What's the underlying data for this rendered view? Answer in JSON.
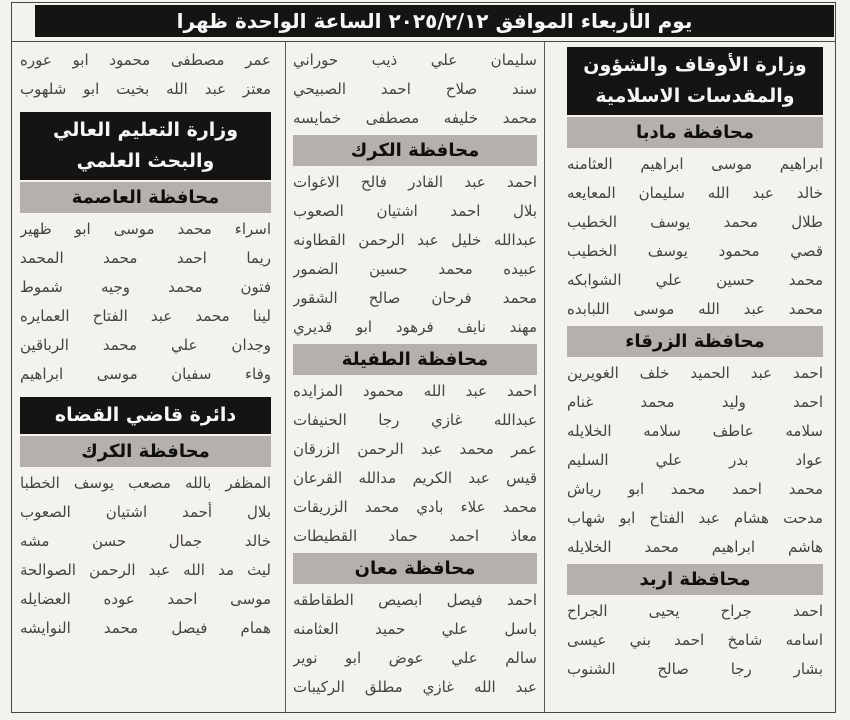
{
  "colors": {
    "page_bg": "#f4f2ef",
    "banner_black_bg": "#161412",
    "banner_black_text": "#f7f6f4",
    "banner_gray_bg": "#b3b0ad",
    "banner_gray_text": "#100f0e",
    "name_text": "#454340",
    "border": "#4a4642"
  },
  "header": {
    "title": "يوم الأربعاء الموافق ٢٠٢٥/٢/١٢ الساعة الواحدة ظهرا"
  },
  "columns": [
    {
      "id": "column-right",
      "blocks": [
        {
          "type": "ministry",
          "label": "وزارة الأوقاف والشؤون والمقدسات الاسلامية"
        },
        {
          "type": "governorate",
          "label": "محافظة مادبا"
        },
        {
          "type": "names",
          "items": [
            "ابراهيم موسى ابراهيم العثامنه",
            "خالد عبد الله سليمان المعايعه",
            "طلال محمد يوسف الخطيب",
            "قصي محمود يوسف الخطيب",
            "محمد حسين علي الشوابكه",
            "محمد عبد الله موسى اللبابده"
          ]
        },
        {
          "type": "governorate",
          "label": "محافظة الزرقاء"
        },
        {
          "type": "names",
          "items": [
            "احمد عبد الحميد خلف الغويرين",
            "احمد وليد محمد غنام",
            "سلامه عاطف سلامه الخلايله",
            "عواد بدر علي السليم",
            "محمد احمد محمد ابو رياش",
            "مدحت هشام عبد الفتاح ابو شهاب",
            "هاشم ابراهيم محمد الخلايله"
          ]
        },
        {
          "type": "governorate",
          "label": "محافظة اربد"
        },
        {
          "type": "names",
          "items": [
            "احمد جراح يحيى الجراح",
            "اسامه شامخ احمد بني عيسى",
            "بشار رجا صالح الشنوب"
          ]
        }
      ]
    },
    {
      "id": "column-middle",
      "blocks": [
        {
          "type": "names",
          "items": [
            "سليمان علي ذيب حوراني",
            "سند صلاح احمد الصبيحي",
            "محمد خليفه مصطفى خمايسه"
          ]
        },
        {
          "type": "governorate",
          "label": "محافظة الكرك"
        },
        {
          "type": "names",
          "items": [
            "احمد عبد القادر فالح الاغوات",
            "بلال احمد اشتيان الصعوب",
            "عبدالله خليل عبد الرحمن القطاونه",
            "عبيده محمد حسين الضمور",
            "محمد فرحان صالح الشقور",
            "مهند نايف فرهود ابو قديري"
          ]
        },
        {
          "type": "governorate",
          "label": "محافظة الطفيلة"
        },
        {
          "type": "names",
          "items": [
            "احمد عبد الله محمود المزايده",
            "عبدالله غازي رجا الحنيفات",
            "عمر محمد عبد الرحمن الزرقان",
            "قيس عبد الكريم مدالله القرعان",
            "محمد علاء بادي محمد الزريقات",
            "معاذ احمد حماد القطيطات"
          ]
        },
        {
          "type": "governorate",
          "label": "محافظة معان"
        },
        {
          "type": "names",
          "items": [
            "احمد فيصل ابصيص الطقاطقه",
            "باسل علي حميد العثامنه",
            "سالم علي عوض ابو نوير",
            "عبد الله غازي مطلق الركيبات"
          ]
        }
      ]
    },
    {
      "id": "column-left",
      "blocks": [
        {
          "type": "names",
          "items": [
            "عمر مصطفى محمود ابو عوره",
            "معتز عبد الله بخيت ابو شلهوب"
          ]
        },
        {
          "type": "ministry",
          "label": "وزارة التعليم العالي والبحث العلمي"
        },
        {
          "type": "governorate",
          "label": "محافظة العاصمة"
        },
        {
          "type": "names",
          "items": [
            "اسراء محمد موسى ابو ظهير",
            "ريما احمد محمد المحمد",
            "فتون محمد وجيه شموط",
            "لينا محمد عبد الفتاح العمايره",
            "وجدان علي محمد الرباقين",
            "وفاء سفيان موسى ابراهيم"
          ]
        },
        {
          "type": "ministry",
          "label": "دائرة قاضي القضاه"
        },
        {
          "type": "governorate",
          "label": "محافظة الكرك"
        },
        {
          "type": "names",
          "items": [
            "المظفر بالله مصعب يوسف الخطبا",
            "بلال أحمد اشتيان الصعوب",
            "خالد جمال حسن مشه",
            "ليث مد الله عبد الرحمن الصوالحة",
            "موسى احمد عوده العضايله",
            "همام فيصل محمد النوايشه"
          ]
        }
      ]
    }
  ]
}
